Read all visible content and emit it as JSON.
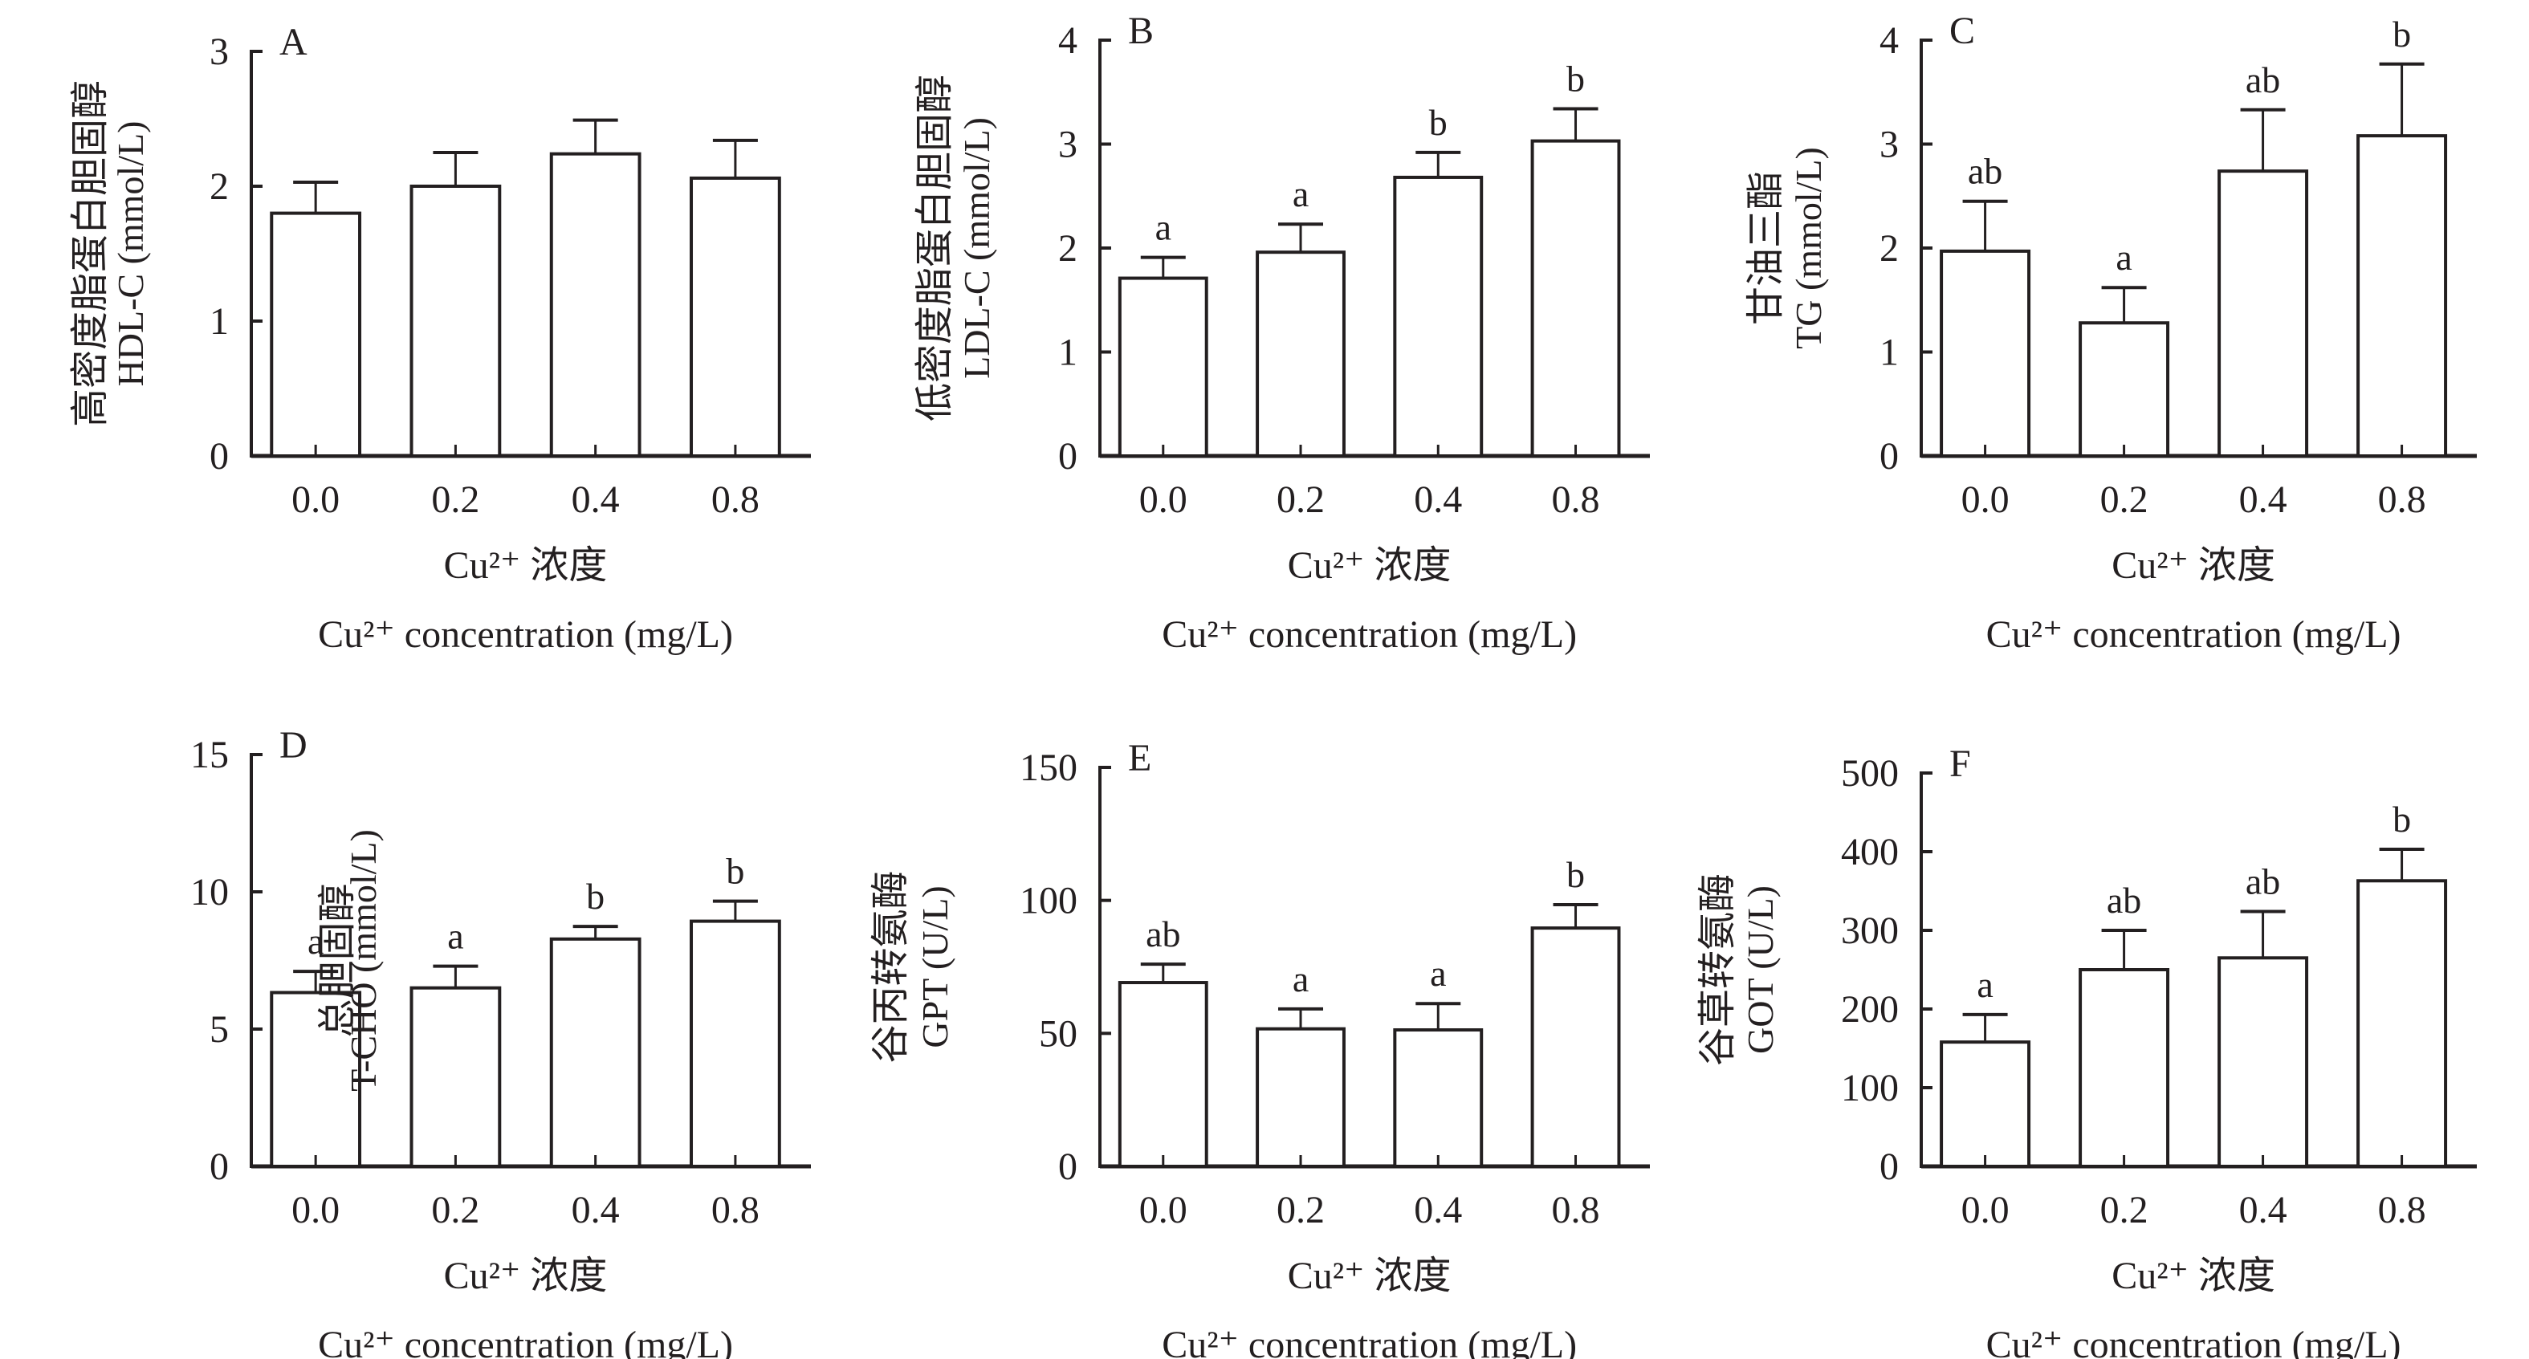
{
  "chart_data": [
    {
      "panel": "A",
      "type": "bar",
      "title": "",
      "ylabel_cn": "高密度脂蛋白胆固醇",
      "ylabel_en": "HDL-C (mmol/L)",
      "xlabel_cn": "Cu²⁺ 浓度",
      "xlabel_en": "Cu²⁺ concentration (mg/L)",
      "categories": [
        "0.0",
        "0.2",
        "0.4",
        "0.8"
      ],
      "values": [
        1.8,
        2.0,
        2.24,
        2.06
      ],
      "error_upper": [
        2.03,
        2.25,
        2.49,
        2.34
      ],
      "significance": [
        "",
        "",
        "",
        ""
      ],
      "ylim": [
        0,
        3
      ],
      "yticks": [
        0,
        1,
        2,
        3
      ],
      "grid": false
    },
    {
      "panel": "B",
      "type": "bar",
      "title": "",
      "ylabel_cn": "低密度脂蛋白胆固醇",
      "ylabel_en": "LDL-C (mmol/L)",
      "xlabel_cn": "Cu²⁺ 浓度",
      "xlabel_en": "Cu²⁺ concentration (mg/L)",
      "categories": [
        "0.0",
        "0.2",
        "0.4",
        "0.8"
      ],
      "values": [
        1.71,
        1.96,
        2.68,
        3.03
      ],
      "error_upper": [
        1.91,
        2.23,
        2.92,
        3.34
      ],
      "significance": [
        "a",
        "a",
        "b",
        "b"
      ],
      "ylim": [
        0,
        4
      ],
      "yticks": [
        0,
        1,
        2,
        3,
        4
      ],
      "grid": false
    },
    {
      "panel": "C",
      "type": "bar",
      "title": "",
      "ylabel_cn": "甘油三酯",
      "ylabel_en": "TG (mmol/L)",
      "xlabel_cn": "Cu²⁺ 浓度",
      "xlabel_en": "Cu²⁺ concentration (mg/L)",
      "categories": [
        "0.0",
        "0.2",
        "0.4",
        "0.8"
      ],
      "values": [
        1.97,
        1.28,
        2.74,
        3.08
      ],
      "error_upper": [
        2.45,
        1.62,
        3.33,
        3.77
      ],
      "significance": [
        "ab",
        "a",
        "ab",
        "b"
      ],
      "ylim": [
        0,
        4
      ],
      "yticks": [
        0,
        1,
        2,
        3,
        4
      ],
      "grid": false
    },
    {
      "panel": "D",
      "type": "bar",
      "title": "",
      "ylabel_cn": "总胆固醇",
      "ylabel_en": "T-CHO (mmol/L)",
      "xlabel_cn": "Cu²⁺ 浓度",
      "xlabel_en": "Cu²⁺ concentration (mg/L)",
      "categories": [
        "0.0",
        "0.2",
        "0.4",
        "0.8"
      ],
      "values": [
        6.33,
        6.5,
        8.28,
        8.93
      ],
      "error_upper": [
        7.1,
        7.29,
        8.74,
        9.66
      ],
      "significance": [
        "a",
        "a",
        "b",
        "b"
      ],
      "ylim": [
        0,
        15
      ],
      "yticks": [
        0,
        5,
        10,
        15
      ],
      "grid": false
    },
    {
      "panel": "E",
      "type": "bar",
      "title": "",
      "ylabel_cn": "谷丙转氨酶",
      "ylabel_en": "GPT (U/L)",
      "xlabel_cn": "Cu²⁺ 浓度",
      "xlabel_en": "Cu²⁺ concentration (mg/L)",
      "categories": [
        "0.0",
        "0.2",
        "0.4",
        "0.8"
      ],
      "values": [
        69.1,
        51.7,
        51.3,
        89.6
      ],
      "error_upper": [
        76.0,
        59.2,
        61.2,
        98.4
      ],
      "significance": [
        "ab",
        "a",
        "a",
        "b"
      ],
      "ylim": [
        0,
        150
      ],
      "yticks": [
        0,
        50,
        100,
        150
      ],
      "grid": false
    },
    {
      "panel": "F",
      "type": "bar",
      "title": "",
      "ylabel_cn": "谷草转氨酶",
      "ylabel_en": "GOT (U/L)",
      "xlabel_cn": "Cu²⁺ 浓度",
      "xlabel_en": "Cu²⁺ concentration (mg/L)",
      "categories": [
        "0.0",
        "0.2",
        "0.4",
        "0.8"
      ],
      "values": [
        158,
        250,
        265,
        363
      ],
      "error_upper": [
        193,
        300,
        324,
        403
      ],
      "significance": [
        "a",
        "ab",
        "ab",
        "b"
      ],
      "ylim": [
        0,
        500
      ],
      "yticks": [
        0,
        100,
        200,
        300,
        400,
        500
      ],
      "grid": false
    }
  ],
  "style": {
    "ink_color": "#231f20",
    "bar_fill": "#ffffff"
  }
}
